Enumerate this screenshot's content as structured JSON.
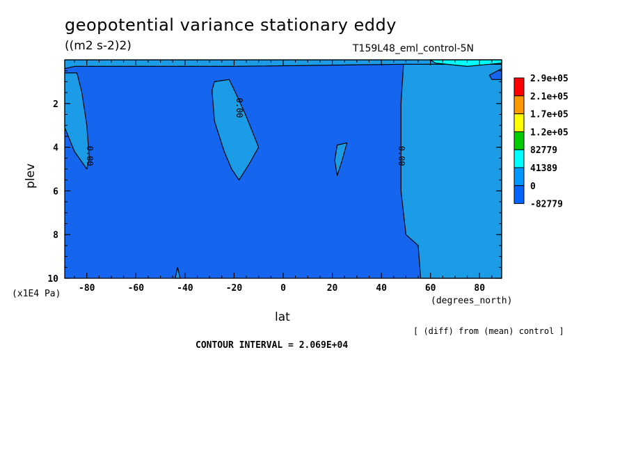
{
  "chart_data": {
    "type": "heatmap",
    "title": "geopotential variance stationary eddy",
    "units_label": "((m2 s-2)2)",
    "run_label": "T159L48_eml_control-5N",
    "xlabel": "lat",
    "ylabel": "plev",
    "x_units": "(degrees_north)",
    "y_units": "(x1E4 Pa)",
    "xlim": [
      -89,
      89
    ],
    "ylim": [
      0,
      10
    ],
    "y_inverted": true,
    "x_ticks": [
      -80,
      -60,
      -40,
      -20,
      0,
      20,
      40,
      60,
      80
    ],
    "y_ticks": [
      2,
      4,
      6,
      8,
      10
    ],
    "diff_note": "[ (diff) from (mean) control ]",
    "contour_interval_label": "CONTOUR INTERVAL = 2.069E+04",
    "contour_labels": [
      {
        "text": "0.00",
        "x": -79,
        "y": 4.4
      },
      {
        "text": "0.00",
        "x": -18,
        "y": 2.2
      },
      {
        "text": "0.00",
        "x": 48,
        "y": 4.4
      }
    ],
    "legend": {
      "placement": "right",
      "levels": [
        "2.9e+05",
        "2.1e+05",
        "1.7e+05",
        "1.2e+05",
        "82779",
        "41389",
        "0",
        "-82779"
      ],
      "colors": [
        "#ff0000",
        "#ff9900",
        "#ffff00",
        "#00cc00",
        "#00ffff",
        "#0099ff",
        "#0066ff"
      ]
    },
    "colors": {
      "negative": "#1565ef",
      "near_zero": "#1c9be6",
      "light_positive": "#00ffff"
    },
    "regions": [
      {
        "name": "negative background",
        "value_range": "-82779 to 0",
        "color": "negative"
      },
      {
        "name": "SH polar band",
        "value_range": "0 to 41389",
        "color": "near_zero",
        "outline": [
          [
            -89,
            3.1
          ],
          [
            -85,
            4.2
          ],
          [
            -80,
            5.0
          ],
          [
            -79,
            4.5
          ],
          [
            -80,
            3.0
          ],
          [
            -82,
            1.5
          ],
          [
            -84,
            0.6
          ],
          [
            -89,
            0.6
          ]
        ]
      },
      {
        "name": "SH midlatitude tongue",
        "value_range": "0 to 41389",
        "color": "near_zero",
        "outline": [
          [
            -28,
            1.0
          ],
          [
            -22,
            0.9
          ],
          [
            -19,
            1.6
          ],
          [
            -15,
            2.6
          ],
          [
            -10,
            4.0
          ],
          [
            -14,
            4.8
          ],
          [
            -18,
            5.5
          ],
          [
            -21,
            5.0
          ],
          [
            -24,
            4.2
          ],
          [
            -28,
            2.8
          ],
          [
            -29,
            1.4
          ]
        ]
      },
      {
        "name": "equatorial patch",
        "value_range": "0 to 41389",
        "color": "near_zero",
        "outline": [
          [
            22,
            3.9
          ],
          [
            26,
            3.8
          ],
          [
            24,
            4.6
          ],
          [
            22,
            5.3
          ],
          [
            21,
            4.6
          ]
        ]
      },
      {
        "name": "NH band",
        "value_range": "0 to 41389",
        "color": "near_zero",
        "outline": [
          [
            49,
            0.2
          ],
          [
            48,
            2.0
          ],
          [
            48,
            6.0
          ],
          [
            50,
            8.0
          ],
          [
            55,
            8.5
          ],
          [
            56,
            10
          ],
          [
            89,
            10
          ],
          [
            89,
            0.2
          ]
        ]
      },
      {
        "name": "upper boundary strip",
        "value_range": "0 to 41389",
        "color": "near_zero",
        "outline": [
          [
            -89,
            0.0
          ],
          [
            89,
            0.0
          ],
          [
            89,
            0.2
          ],
          [
            50,
            0.2
          ],
          [
            -20,
            0.3
          ],
          [
            -85,
            0.3
          ],
          [
            -89,
            0.4
          ]
        ]
      },
      {
        "name": "polar cap NH",
        "value_range": "above 41389",
        "color": "light_positive",
        "outline": [
          [
            60,
            0.0
          ],
          [
            89,
            0.0
          ],
          [
            89,
            0.15
          ],
          [
            75,
            0.3
          ],
          [
            62,
            0.15
          ]
        ]
      },
      {
        "name": "NH high-latitude negative pocket",
        "value_range": "-82779 to 0",
        "color": "negative",
        "outline": [
          [
            84,
            0.7
          ],
          [
            89,
            0.4
          ],
          [
            89,
            0.9
          ],
          [
            85,
            0.9
          ]
        ]
      },
      {
        "name": "SH lower tropospheric spike",
        "value_range": "0 to 41389",
        "color": "near_zero",
        "outline": [
          [
            -44,
            10
          ],
          [
            -43,
            9.5
          ],
          [
            -42,
            10
          ]
        ]
      }
    ]
  }
}
